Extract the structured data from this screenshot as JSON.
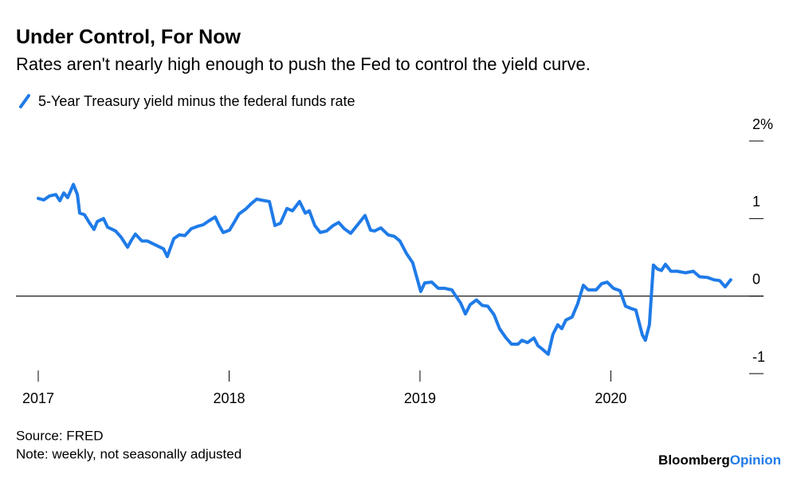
{
  "chart_data": {
    "type": "line",
    "title": "Under Control, For Now",
    "subtitle": "Rates aren't nearly high enough to push the Fed to control the yield curve.",
    "source": "Source: FRED",
    "note": "Note: weekly, not seasonally adjusted",
    "brand": "Bloomberg",
    "brand_suffix": "Opinion",
    "x": [
      2017.0,
      2017.029,
      2017.058,
      2017.092,
      2017.113,
      2017.134,
      2017.154,
      2017.184,
      2017.205,
      2017.217,
      2017.242,
      2017.267,
      2017.292,
      2017.309,
      2017.342,
      2017.363,
      2017.405,
      2017.434,
      2017.468,
      2017.488,
      2017.509,
      2017.543,
      2017.572,
      2017.614,
      2017.656,
      2017.676,
      2017.71,
      2017.739,
      2017.768,
      2017.802,
      2017.835,
      2017.864,
      2017.894,
      2017.927,
      2017.948,
      2017.969,
      2018.002,
      2018.031,
      2018.052,
      2018.086,
      2018.115,
      2018.144,
      2018.186,
      2018.211,
      2018.24,
      2018.269,
      2018.303,
      2018.332,
      2018.369,
      2018.399,
      2018.42,
      2018.449,
      2018.478,
      2018.511,
      2018.545,
      2018.574,
      2018.603,
      2018.637,
      2018.67,
      2018.712,
      2018.741,
      2018.762,
      2018.795,
      2018.833,
      2018.866,
      2018.895,
      2018.929,
      2018.962,
      2018.987,
      2019.004,
      2019.025,
      2019.062,
      2019.096,
      2019.129,
      2019.167,
      2019.188,
      2019.213,
      2019.238,
      2019.263,
      2019.296,
      2019.326,
      2019.355,
      2019.388,
      2019.417,
      2019.451,
      2019.48,
      2019.513,
      2019.534,
      2019.563,
      2019.597,
      2019.618,
      2019.639,
      2019.672,
      2019.697,
      2019.722,
      2019.743,
      2019.764,
      2019.797,
      2019.826,
      2019.856,
      2019.881,
      2019.923,
      2019.952,
      2019.981,
      2020.014,
      2020.048,
      2020.077,
      2020.106,
      2020.131,
      2020.165,
      2020.181,
      2020.202,
      2020.223,
      2020.244,
      2020.265,
      2020.286,
      2020.315,
      2020.349,
      2020.391,
      2020.432,
      2020.465,
      2020.507,
      2020.541,
      2020.57,
      2020.599,
      2020.628
    ],
    "series": [
      {
        "name": "5-Year Treasury yield minus the federal funds rate",
        "color": "#1f7be8",
        "values": [
          1.26,
          1.24,
          1.29,
          1.31,
          1.23,
          1.33,
          1.27,
          1.44,
          1.31,
          1.07,
          1.05,
          0.95,
          0.86,
          0.96,
          1.0,
          0.89,
          0.84,
          0.76,
          0.63,
          0.72,
          0.8,
          0.71,
          0.71,
          0.66,
          0.61,
          0.51,
          0.74,
          0.79,
          0.78,
          0.87,
          0.9,
          0.92,
          0.97,
          1.02,
          0.91,
          0.82,
          0.85,
          0.97,
          1.06,
          1.12,
          1.19,
          1.25,
          1.23,
          1.22,
          0.91,
          0.94,
          1.13,
          1.1,
          1.22,
          1.07,
          1.1,
          0.91,
          0.82,
          0.84,
          0.91,
          0.95,
          0.87,
          0.81,
          0.91,
          1.04,
          0.85,
          0.84,
          0.88,
          0.79,
          0.77,
          0.71,
          0.55,
          0.43,
          0.21,
          0.06,
          0.17,
          0.18,
          0.1,
          0.1,
          0.08,
          0.0,
          -0.09,
          -0.23,
          -0.11,
          -0.05,
          -0.12,
          -0.13,
          -0.24,
          -0.42,
          -0.54,
          -0.62,
          -0.62,
          -0.57,
          -0.6,
          -0.54,
          -0.64,
          -0.68,
          -0.75,
          -0.49,
          -0.37,
          -0.42,
          -0.31,
          -0.27,
          -0.1,
          0.14,
          0.08,
          0.08,
          0.16,
          0.18,
          0.1,
          0.07,
          -0.13,
          -0.16,
          -0.18,
          -0.5,
          -0.57,
          -0.37,
          0.4,
          0.35,
          0.33,
          0.41,
          0.32,
          0.32,
          0.3,
          0.32,
          0.25,
          0.24,
          0.21,
          0.2,
          0.12,
          0.21
        ]
      }
    ],
    "xlim": [
      2017,
      2020.8
    ],
    "xticks": [
      2017,
      2018,
      2019,
      2020
    ],
    "ylim": [
      -1,
      2
    ],
    "yticks": [
      {
        "value": 2,
        "label": "2%"
      },
      1,
      0,
      -1
    ],
    "zero_line": 0
  }
}
